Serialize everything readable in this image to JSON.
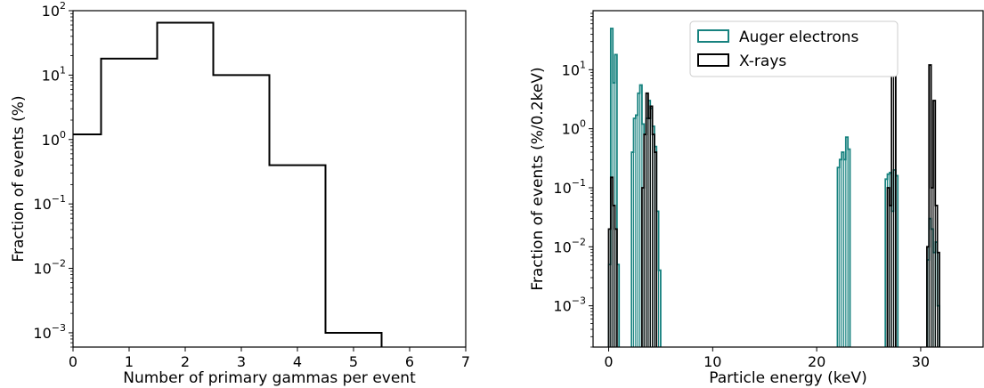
{
  "chart_data": [
    {
      "type": "histogram",
      "xlabel": "Number of primary gammas per event",
      "ylabel": "Fraction of events (%)",
      "xlim": [
        0,
        7
      ],
      "ylim": [
        0.0006,
        100
      ],
      "yscale": "log",
      "grid": false,
      "xticks": [
        "0",
        "1",
        "2",
        "3",
        "4",
        "5",
        "6",
        "7"
      ],
      "yticks": [
        {
          "value": 100,
          "base": "10",
          "exp": "2"
        },
        {
          "value": 10,
          "base": "10",
          "exp": "1"
        },
        {
          "value": 1,
          "base": "10",
          "exp": "0"
        },
        {
          "value": 0.1,
          "base": "10",
          "exp": "−1"
        },
        {
          "value": 0.01,
          "base": "10",
          "exp": "−2"
        },
        {
          "value": 0.001,
          "base": "10",
          "exp": "−3"
        }
      ],
      "series": [
        {
          "color": "#000000",
          "bins": [
            {
              "x0": 0,
              "x1": 0.5,
              "value": 1.2
            },
            {
              "x0": 0.5,
              "x1": 1.5,
              "value": 18
            },
            {
              "x0": 1.5,
              "x1": 2.5,
              "value": 65
            },
            {
              "x0": 2.5,
              "x1": 3.5,
              "value": 10
            },
            {
              "x0": 3.5,
              "x1": 4.5,
              "value": 0.4
            },
            {
              "x0": 4.5,
              "x1": 5.5,
              "value": 0.001
            }
          ]
        }
      ]
    },
    {
      "type": "histogram",
      "xlabel": "Particle energy (keV)",
      "ylabel": "Fraction of events (%/0.2keV)",
      "xlim": [
        -1.5,
        36
      ],
      "ylim": [
        0.0002,
        100
      ],
      "yscale": "log",
      "grid": false,
      "legend_position": "top-center",
      "xticks": [
        "0",
        "10",
        "20",
        "30"
      ],
      "yticks": [
        {
          "value": 10,
          "base": "10",
          "exp": "1"
        },
        {
          "value": 1,
          "base": "10",
          "exp": "0"
        },
        {
          "value": 0.1,
          "base": "10",
          "exp": "−1"
        },
        {
          "value": 0.01,
          "base": "10",
          "exp": "−2"
        },
        {
          "value": 0.001,
          "base": "10",
          "exp": "−3"
        }
      ],
      "bin_width": 0.2,
      "series": [
        {
          "name": "Auger electrons",
          "color": "#17827f",
          "bins": [
            {
              "x": 0.0,
              "value": 0.005
            },
            {
              "x": 0.2,
              "value": 50
            },
            {
              "x": 0.4,
              "value": 6
            },
            {
              "x": 0.6,
              "value": 18
            },
            {
              "x": 0.8,
              "value": 0.005
            },
            {
              "x": 2.2,
              "value": 0.4
            },
            {
              "x": 2.4,
              "value": 1.5
            },
            {
              "x": 2.6,
              "value": 1.7
            },
            {
              "x": 2.8,
              "value": 4
            },
            {
              "x": 3.0,
              "value": 5.5
            },
            {
              "x": 3.2,
              "value": 1.2
            },
            {
              "x": 3.4,
              "value": 0.8
            },
            {
              "x": 3.6,
              "value": 1.5
            },
            {
              "x": 3.8,
              "value": 3
            },
            {
              "x": 4.0,
              "value": 2.2
            },
            {
              "x": 4.2,
              "value": 1.1
            },
            {
              "x": 4.4,
              "value": 0.5
            },
            {
              "x": 4.6,
              "value": 0.04
            },
            {
              "x": 4.8,
              "value": 0.004
            },
            {
              "x": 22.0,
              "value": 0.22
            },
            {
              "x": 22.2,
              "value": 0.3
            },
            {
              "x": 22.4,
              "value": 0.4
            },
            {
              "x": 22.6,
              "value": 0.3
            },
            {
              "x": 22.8,
              "value": 0.72
            },
            {
              "x": 23.0,
              "value": 0.45
            },
            {
              "x": 26.6,
              "value": 0.14
            },
            {
              "x": 26.8,
              "value": 0.17
            },
            {
              "x": 27.0,
              "value": 0.18
            },
            {
              "x": 27.2,
              "value": 0.04
            },
            {
              "x": 27.4,
              "value": 0.2
            },
            {
              "x": 27.6,
              "value": 0.16
            },
            {
              "x": 30.6,
              "value": 0.006
            },
            {
              "x": 30.8,
              "value": 0.03
            },
            {
              "x": 31.0,
              "value": 0.02
            },
            {
              "x": 31.2,
              "value": 0.008
            },
            {
              "x": 31.4,
              "value": 0.012
            },
            {
              "x": 31.6,
              "value": 0.001
            }
          ]
        },
        {
          "name": "X-rays",
          "color": "#000000",
          "bins": [
            {
              "x": 0.0,
              "value": 0.02
            },
            {
              "x": 0.2,
              "value": 0.15
            },
            {
              "x": 0.4,
              "value": 0.05
            },
            {
              "x": 0.6,
              "value": 0.02
            },
            {
              "x": 3.2,
              "value": 0.1
            },
            {
              "x": 3.4,
              "value": 0.8
            },
            {
              "x": 3.6,
              "value": 4
            },
            {
              "x": 3.8,
              "value": 1.5
            },
            {
              "x": 4.0,
              "value": 2.4
            },
            {
              "x": 4.2,
              "value": 0.8
            },
            {
              "x": 4.4,
              "value": 0.4
            },
            {
              "x": 26.8,
              "value": 0.1
            },
            {
              "x": 27.0,
              "value": 0.05
            },
            {
              "x": 27.2,
              "value": 20
            },
            {
              "x": 27.4,
              "value": 50
            },
            {
              "x": 30.6,
              "value": 0.01
            },
            {
              "x": 30.8,
              "value": 12
            },
            {
              "x": 31.0,
              "value": 0.1
            },
            {
              "x": 31.2,
              "value": 3
            },
            {
              "x": 31.4,
              "value": 0.05
            },
            {
              "x": 31.6,
              "value": 0.008
            }
          ]
        }
      ]
    }
  ]
}
